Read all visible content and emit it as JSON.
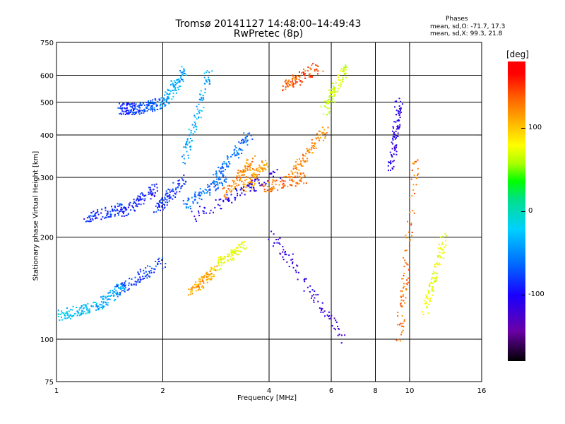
{
  "header": {
    "title_line1": "Tromsø 20141127 14:48:00–14:49:43",
    "title_line2": "RwPretec (8p)"
  },
  "phase_box": {
    "heading": "Phases",
    "line_o": "mean, sd,O: -71.7, 17.3",
    "line_x": "mean, sd,X:  99.3, 21.8"
  },
  "chart_data": {
    "type": "scatter",
    "title": "Tromsø 20141127 14:48:00–14:49:43",
    "subtitle": "RwPretec (8p)",
    "xlabel": "Frequency [MHz]",
    "ylabel": "Stationary phase Virtual Height [km]",
    "x_scale": "log2",
    "y_scale": "log",
    "xlim": [
      1,
      16
    ],
    "ylim": [
      75,
      750
    ],
    "x_ticks": [
      1,
      2,
      4,
      6,
      8,
      10,
      16
    ],
    "x_tick_labels": [
      "1",
      "2",
      "4",
      "6",
      "8",
      "10",
      "16"
    ],
    "x_gridlines": [
      2,
      4,
      6,
      8,
      10
    ],
    "y_ticks": [
      75,
      100,
      200,
      300,
      400,
      500,
      600,
      750
    ],
    "y_tick_labels": [
      "75",
      "100",
      "200",
      "300",
      "400",
      "500",
      "600",
      "750"
    ],
    "y_gridlines": [
      100,
      200,
      300,
      400,
      500,
      600
    ],
    "grid": true,
    "colorbar": {
      "label": "[deg]",
      "range": [
        -180,
        180
      ],
      "ticks": [
        100,
        0,
        -100
      ],
      "tick_labels": [
        "100",
        "0",
        "-100"
      ]
    },
    "traces": [
      {
        "f": [
          1.0,
          1.3
        ],
        "h": [
          118,
          125
        ],
        "phase": -30
      },
      {
        "f": [
          1.3,
          1.55
        ],
        "h": [
          125,
          145
        ],
        "phase": -40
      },
      {
        "f": [
          1.5,
          2.0
        ],
        "h": [
          140,
          170
        ],
        "phase": -80
      },
      {
        "f": [
          1.5,
          1.7
        ],
        "h": [
          480,
          480
        ],
        "phase": -85
      },
      {
        "f": [
          1.7,
          2.0
        ],
        "h": [
          480,
          500
        ],
        "phase": -70
      },
      {
        "f": [
          2.0,
          2.3
        ],
        "h": [
          500,
          620
        ],
        "phase": -40
      },
      {
        "f": [
          1.2,
          1.55
        ],
        "h": [
          230,
          245
        ],
        "phase": -85
      },
      {
        "f": [
          1.55,
          1.9
        ],
        "h": [
          240,
          280
        ],
        "phase": -95
      },
      {
        "f": [
          1.9,
          2.3
        ],
        "h": [
          240,
          300
        ],
        "phase": -85
      },
      {
        "f": [
          2.3,
          3.0
        ],
        "h": [
          250,
          300
        ],
        "phase": -65
      },
      {
        "f": [
          2.3,
          2.7
        ],
        "h": [
          340,
          620
        ],
        "phase": -40
      },
      {
        "f": [
          2.8,
          3.5
        ],
        "h": [
          300,
          400
        ],
        "phase": -60
      },
      {
        "f": [
          2.4,
          2.8
        ],
        "h": [
          140,
          160
        ],
        "phase": 130
      },
      {
        "f": [
          2.8,
          3.4
        ],
        "h": [
          165,
          190
        ],
        "phase": 85
      },
      {
        "f": [
          3.0,
          3.6
        ],
        "h": [
          270,
          340
        ],
        "phase": 140
      },
      {
        "f": [
          3.4,
          3.9
        ],
        "h": [
          280,
          330
        ],
        "phase": 130
      },
      {
        "f": [
          3.8,
          5.0
        ],
        "h": [
          280,
          300
        ],
        "phase": 150
      },
      {
        "f": [
          4.5,
          5.8
        ],
        "h": [
          300,
          420
        ],
        "phase": 140
      },
      {
        "f": [
          4.4,
          5.6
        ],
        "h": [
          560,
          640
        ],
        "phase": 160
      },
      {
        "f": [
          5.7,
          6.6
        ],
        "h": [
          470,
          640
        ],
        "phase": 75
      },
      {
        "f": [
          2.4,
          4.2
        ],
        "h": [
          230,
          310
        ],
        "phase": -110
      },
      {
        "f": [
          4.0,
          6.5
        ],
        "h": [
          210,
          100
        ],
        "phase": -120
      },
      {
        "f": [
          8.8,
          9.3
        ],
        "h": [
          320,
          500
        ],
        "phase": -115
      },
      {
        "f": [
          9.3,
          10.4
        ],
        "h": [
          100,
          340
        ],
        "phase": 150
      },
      {
        "f": [
          11.0,
          12.5
        ],
        "h": [
          120,
          200
        ],
        "phase": 85
      }
    ]
  }
}
